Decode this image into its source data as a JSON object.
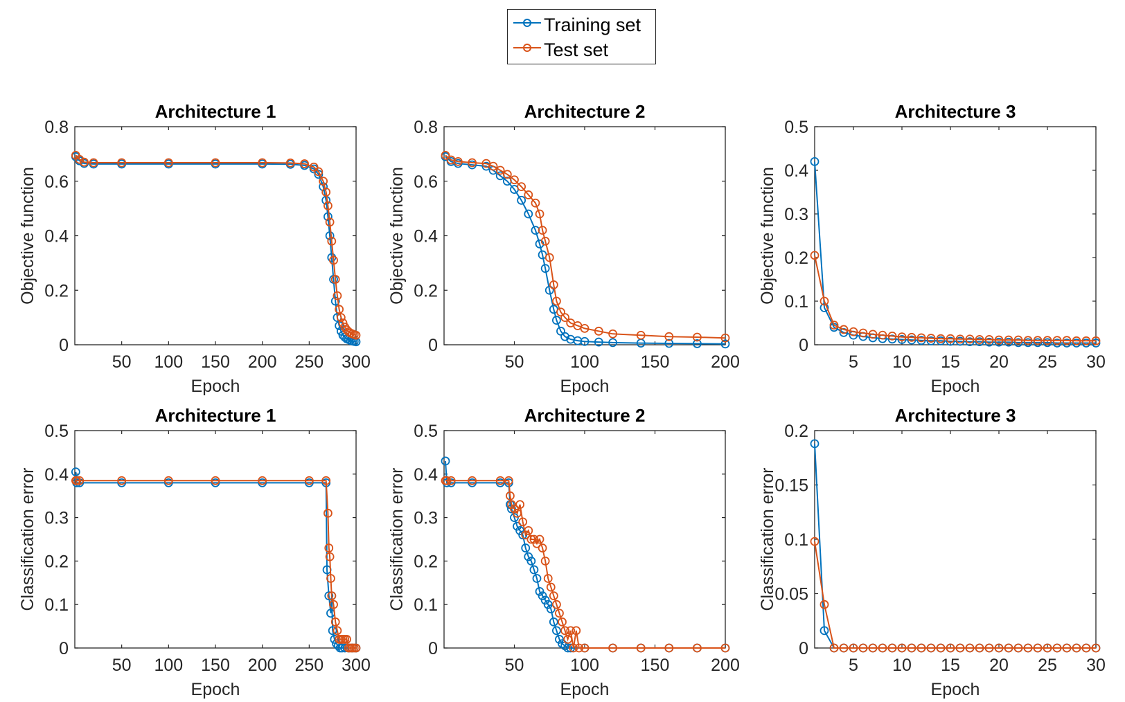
{
  "figure": {
    "legend": [
      {
        "label": "Training set",
        "color": "#0072BD"
      },
      {
        "label": "Test set",
        "color": "#D95319"
      }
    ]
  },
  "chart_data": [
    {
      "type": "line",
      "title": "Architecture 1",
      "xlabel": "Epoch",
      "ylabel": "Objective function",
      "xlim": [
        0,
        300
      ],
      "ylim": [
        0,
        0.8
      ],
      "xticks": [
        50,
        100,
        150,
        200,
        250,
        300
      ],
      "xtick_labels": [
        "50",
        "100",
        "150",
        "200",
        "250",
        "300"
      ],
      "yticks": [
        0,
        0.2,
        0.4,
        0.6,
        0.8
      ],
      "ytick_labels": [
        "0",
        "0.2",
        "0.4",
        "0.6",
        "0.8"
      ],
      "series": [
        {
          "name": "Training set",
          "color": "#0072BD",
          "x": [
            1,
            5,
            10,
            20,
            50,
            100,
            150,
            200,
            230,
            245,
            255,
            260,
            265,
            268,
            270,
            272,
            274,
            276,
            278,
            280,
            282,
            284,
            286,
            288,
            290,
            292,
            294,
            296,
            298,
            300
          ],
          "y": [
            0.69,
            0.675,
            0.665,
            0.663,
            0.663,
            0.663,
            0.663,
            0.663,
            0.662,
            0.658,
            0.645,
            0.625,
            0.58,
            0.53,
            0.47,
            0.4,
            0.32,
            0.24,
            0.16,
            0.1,
            0.07,
            0.05,
            0.035,
            0.028,
            0.022,
            0.019,
            0.016,
            0.014,
            0.012,
            0.011
          ]
        },
        {
          "name": "Test set",
          "color": "#D95319",
          "x": [
            1,
            5,
            10,
            20,
            50,
            100,
            150,
            200,
            230,
            245,
            255,
            260,
            265,
            268,
            270,
            272,
            274,
            276,
            278,
            280,
            282,
            284,
            286,
            288,
            290,
            292,
            294,
            296,
            298,
            300
          ],
          "y": [
            0.695,
            0.68,
            0.67,
            0.668,
            0.668,
            0.668,
            0.668,
            0.668,
            0.667,
            0.664,
            0.652,
            0.635,
            0.6,
            0.56,
            0.51,
            0.45,
            0.38,
            0.31,
            0.24,
            0.18,
            0.13,
            0.1,
            0.08,
            0.065,
            0.055,
            0.048,
            0.043,
            0.04,
            0.037,
            0.035
          ]
        }
      ]
    },
    {
      "type": "line",
      "title": "Architecture 2",
      "xlabel": "Epoch",
      "ylabel": "Objective function",
      "xlim": [
        0,
        200
      ],
      "ylim": [
        0,
        0.8
      ],
      "xticks": [
        50,
        100,
        150,
        200
      ],
      "xtick_labels": [
        "50",
        "100",
        "150",
        "200"
      ],
      "yticks": [
        0,
        0.2,
        0.4,
        0.6,
        0.8
      ],
      "ytick_labels": [
        "0",
        "0.2",
        "0.4",
        "0.6",
        "0.8"
      ],
      "series": [
        {
          "name": "Training set",
          "color": "#0072BD",
          "x": [
            1,
            5,
            10,
            20,
            30,
            35,
            40,
            45,
            50,
            55,
            60,
            65,
            68,
            70,
            72,
            75,
            78,
            80,
            83,
            86,
            90,
            95,
            100,
            110,
            120,
            140,
            160,
            180,
            200
          ],
          "y": [
            0.69,
            0.672,
            0.665,
            0.66,
            0.655,
            0.64,
            0.62,
            0.6,
            0.57,
            0.53,
            0.48,
            0.42,
            0.37,
            0.33,
            0.28,
            0.2,
            0.13,
            0.09,
            0.05,
            0.03,
            0.02,
            0.015,
            0.012,
            0.01,
            0.008,
            0.006,
            0.005,
            0.004,
            0.003
          ]
        },
        {
          "name": "Test set",
          "color": "#D95319",
          "x": [
            1,
            5,
            10,
            20,
            30,
            35,
            40,
            45,
            50,
            55,
            60,
            65,
            68,
            70,
            72,
            75,
            78,
            80,
            83,
            86,
            90,
            95,
            100,
            110,
            120,
            140,
            160,
            180,
            200
          ],
          "y": [
            0.695,
            0.678,
            0.672,
            0.668,
            0.665,
            0.655,
            0.64,
            0.625,
            0.605,
            0.58,
            0.55,
            0.52,
            0.48,
            0.42,
            0.38,
            0.32,
            0.22,
            0.16,
            0.12,
            0.1,
            0.08,
            0.07,
            0.06,
            0.05,
            0.04,
            0.035,
            0.03,
            0.028,
            0.025
          ]
        }
      ]
    },
    {
      "type": "line",
      "title": "Architecture 3",
      "xlabel": "Epoch",
      "ylabel": "Objective function",
      "xlim": [
        1,
        30
      ],
      "ylim": [
        0,
        0.5
      ],
      "xticks": [
        5,
        10,
        15,
        20,
        25,
        30
      ],
      "xtick_labels": [
        "5",
        "10",
        "15",
        "20",
        "25",
        "30"
      ],
      "yticks": [
        0,
        0.1,
        0.2,
        0.3,
        0.4,
        0.5
      ],
      "ytick_labels": [
        "0",
        "0.1",
        "0.2",
        "0.3",
        "0.4",
        "0.5"
      ],
      "series": [
        {
          "name": "Training set",
          "color": "#0072BD",
          "x": [
            1,
            2,
            3,
            4,
            5,
            6,
            7,
            8,
            9,
            10,
            11,
            12,
            13,
            14,
            15,
            16,
            17,
            18,
            19,
            20,
            21,
            22,
            23,
            24,
            25,
            26,
            27,
            28,
            29,
            30
          ],
          "y": [
            0.42,
            0.085,
            0.04,
            0.028,
            0.022,
            0.019,
            0.016,
            0.014,
            0.013,
            0.012,
            0.011,
            0.01,
            0.009,
            0.009,
            0.008,
            0.008,
            0.007,
            0.007,
            0.006,
            0.006,
            0.006,
            0.005,
            0.005,
            0.005,
            0.005,
            0.004,
            0.004,
            0.004,
            0.004,
            0.004
          ]
        },
        {
          "name": "Test set",
          "color": "#D95319",
          "x": [
            1,
            2,
            3,
            4,
            5,
            6,
            7,
            8,
            9,
            10,
            11,
            12,
            13,
            14,
            15,
            16,
            17,
            18,
            19,
            20,
            21,
            22,
            23,
            24,
            25,
            26,
            27,
            28,
            29,
            30
          ],
          "y": [
            0.205,
            0.1,
            0.045,
            0.035,
            0.03,
            0.027,
            0.024,
            0.022,
            0.02,
            0.018,
            0.017,
            0.016,
            0.015,
            0.014,
            0.014,
            0.013,
            0.013,
            0.012,
            0.012,
            0.011,
            0.011,
            0.011,
            0.01,
            0.01,
            0.01,
            0.01,
            0.01,
            0.009,
            0.009,
            0.009
          ]
        }
      ]
    },
    {
      "type": "line",
      "title": "Architecture 1",
      "xlabel": "Epoch",
      "ylabel": "Classification error",
      "xlim": [
        0,
        300
      ],
      "ylim": [
        0,
        0.5
      ],
      "xticks": [
        50,
        100,
        150,
        200,
        250,
        300
      ],
      "xtick_labels": [
        "50",
        "100",
        "150",
        "200",
        "250",
        "300"
      ],
      "yticks": [
        0,
        0.1,
        0.2,
        0.3,
        0.4,
        0.5
      ],
      "ytick_labels": [
        "0",
        "0.1",
        "0.2",
        "0.3",
        "0.4",
        "0.5"
      ],
      "series": [
        {
          "name": "Training set",
          "color": "#0072BD",
          "x": [
            1,
            2,
            5,
            50,
            100,
            150,
            200,
            250,
            268,
            269,
            271,
            273,
            274,
            275,
            277,
            279,
            281,
            283,
            285,
            288,
            292,
            296,
            300
          ],
          "y": [
            0.405,
            0.38,
            0.38,
            0.38,
            0.38,
            0.38,
            0.38,
            0.38,
            0.38,
            0.18,
            0.12,
            0.08,
            0.12,
            0.04,
            0.02,
            0.01,
            0.005,
            0,
            0,
            0,
            0,
            0,
            0
          ]
        },
        {
          "name": "Test set",
          "color": "#D95319",
          "x": [
            1,
            2,
            5,
            50,
            100,
            150,
            200,
            250,
            268,
            270,
            271,
            272,
            273,
            274,
            276,
            278,
            280,
            282,
            284,
            286,
            288,
            290,
            292,
            294,
            296,
            298,
            300
          ],
          "y": [
            0.385,
            0.385,
            0.385,
            0.385,
            0.385,
            0.385,
            0.385,
            0.385,
            0.385,
            0.31,
            0.23,
            0.21,
            0.16,
            0.12,
            0.1,
            0.06,
            0.04,
            0.02,
            0.02,
            0.02,
            0.02,
            0.02,
            0,
            0,
            0,
            0,
            0
          ]
        }
      ]
    },
    {
      "type": "line",
      "title": "Architecture 2",
      "xlabel": "Epoch",
      "ylabel": "Classification error",
      "xlim": [
        0,
        200
      ],
      "ylim": [
        0,
        0.5
      ],
      "xticks": [
        50,
        100,
        150,
        200
      ],
      "xtick_labels": [
        "50",
        "100",
        "150",
        "200"
      ],
      "yticks": [
        0,
        0.1,
        0.2,
        0.3,
        0.4,
        0.5
      ],
      "ytick_labels": [
        "0",
        "0.1",
        "0.2",
        "0.3",
        "0.4",
        "0.5"
      ],
      "series": [
        {
          "name": "Training set",
          "color": "#0072BD",
          "x": [
            1,
            2,
            5,
            20,
            40,
            46,
            47,
            48,
            50,
            52,
            54,
            56,
            58,
            60,
            62,
            64,
            66,
            68,
            70,
            72,
            74,
            76,
            78,
            80,
            82,
            84,
            86,
            88,
            90,
            100,
            120,
            140,
            160,
            180,
            200
          ],
          "y": [
            0.43,
            0.38,
            0.38,
            0.38,
            0.38,
            0.38,
            0.33,
            0.32,
            0.3,
            0.28,
            0.27,
            0.26,
            0.23,
            0.21,
            0.2,
            0.18,
            0.16,
            0.13,
            0.12,
            0.11,
            0.1,
            0.09,
            0.06,
            0.04,
            0.02,
            0.01,
            0.005,
            0,
            0,
            0,
            0,
            0,
            0,
            0,
            0
          ]
        },
        {
          "name": "Test set",
          "color": "#D95319",
          "x": [
            1,
            2,
            5,
            20,
            40,
            46,
            47,
            48,
            50,
            52,
            54,
            56,
            58,
            60,
            62,
            64,
            66,
            68,
            70,
            72,
            74,
            76,
            78,
            80,
            82,
            84,
            86,
            88,
            90,
            92,
            94,
            96,
            100,
            120,
            140,
            160,
            180,
            200
          ],
          "y": [
            0.385,
            0.385,
            0.385,
            0.385,
            0.385,
            0.385,
            0.35,
            0.33,
            0.32,
            0.31,
            0.33,
            0.29,
            0.26,
            0.27,
            0.25,
            0.25,
            0.24,
            0.25,
            0.23,
            0.2,
            0.16,
            0.14,
            0.12,
            0.1,
            0.08,
            0.06,
            0.04,
            0.02,
            0.04,
            0,
            0.04,
            0,
            0,
            0,
            0,
            0,
            0,
            0
          ]
        }
      ]
    },
    {
      "type": "line",
      "title": "Architecture 3",
      "xlabel": "Epoch",
      "ylabel": "Classification error",
      "xlim": [
        1,
        30
      ],
      "ylim": [
        0,
        0.2
      ],
      "xticks": [
        5,
        10,
        15,
        20,
        25,
        30
      ],
      "xtick_labels": [
        "5",
        "10",
        "15",
        "20",
        "25",
        "30"
      ],
      "yticks": [
        0,
        0.05,
        0.1,
        0.15,
        0.2
      ],
      "ytick_labels": [
        "0",
        "0.05",
        "0.1",
        "0.15",
        "0.2"
      ],
      "series": [
        {
          "name": "Training set",
          "color": "#0072BD",
          "x": [
            1,
            2,
            3,
            4,
            5,
            6,
            7,
            8,
            9,
            10,
            11,
            12,
            13,
            14,
            15,
            16,
            17,
            18,
            19,
            20,
            21,
            22,
            23,
            24,
            25,
            26,
            27,
            28,
            29,
            30
          ],
          "y": [
            0.188,
            0.016,
            0,
            0,
            0,
            0,
            0,
            0,
            0,
            0,
            0,
            0,
            0,
            0,
            0,
            0,
            0,
            0,
            0,
            0,
            0,
            0,
            0,
            0,
            0,
            0,
            0,
            0,
            0,
            0
          ]
        },
        {
          "name": "Test set",
          "color": "#D95319",
          "x": [
            1,
            2,
            3,
            4,
            5,
            6,
            7,
            8,
            9,
            10,
            11,
            12,
            13,
            14,
            15,
            16,
            17,
            18,
            19,
            20,
            21,
            22,
            23,
            24,
            25,
            26,
            27,
            28,
            29,
            30
          ],
          "y": [
            0.098,
            0.04,
            0,
            0,
            0,
            0,
            0,
            0,
            0,
            0,
            0,
            0,
            0,
            0,
            0,
            0,
            0,
            0,
            0,
            0,
            0,
            0,
            0,
            0,
            0,
            0,
            0,
            0,
            0,
            0
          ]
        }
      ]
    }
  ]
}
